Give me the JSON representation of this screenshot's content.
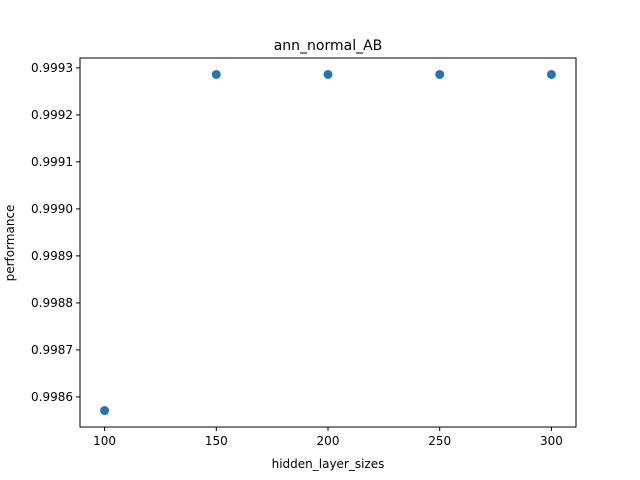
{
  "chart_data": {
    "type": "scatter",
    "title": "ann_normal_AB",
    "xlabel": "hidden_layer_sizes",
    "ylabel": "performance",
    "x": [
      100,
      150,
      200,
      250,
      300
    ],
    "y": [
      0.998571,
      0.999286,
      0.999286,
      0.999286,
      0.999286
    ],
    "xlim": [
      89,
      311
    ],
    "ylim": [
      0.998536,
      0.999321
    ],
    "xticks": [
      100,
      150,
      200,
      250,
      300
    ],
    "xtick_labels": [
      "100",
      "150",
      "200",
      "250",
      "300"
    ],
    "yticks": [
      0.9986,
      0.9987,
      0.9988,
      0.9989,
      0.999,
      0.9991,
      0.9992,
      0.9993
    ],
    "ytick_labels": [
      "0.9986",
      "0.9987",
      "0.9988",
      "0.9989",
      "0.9990",
      "0.9991",
      "0.9992",
      "0.9993"
    ],
    "grid": false,
    "marker_color": "#1f77b4"
  }
}
